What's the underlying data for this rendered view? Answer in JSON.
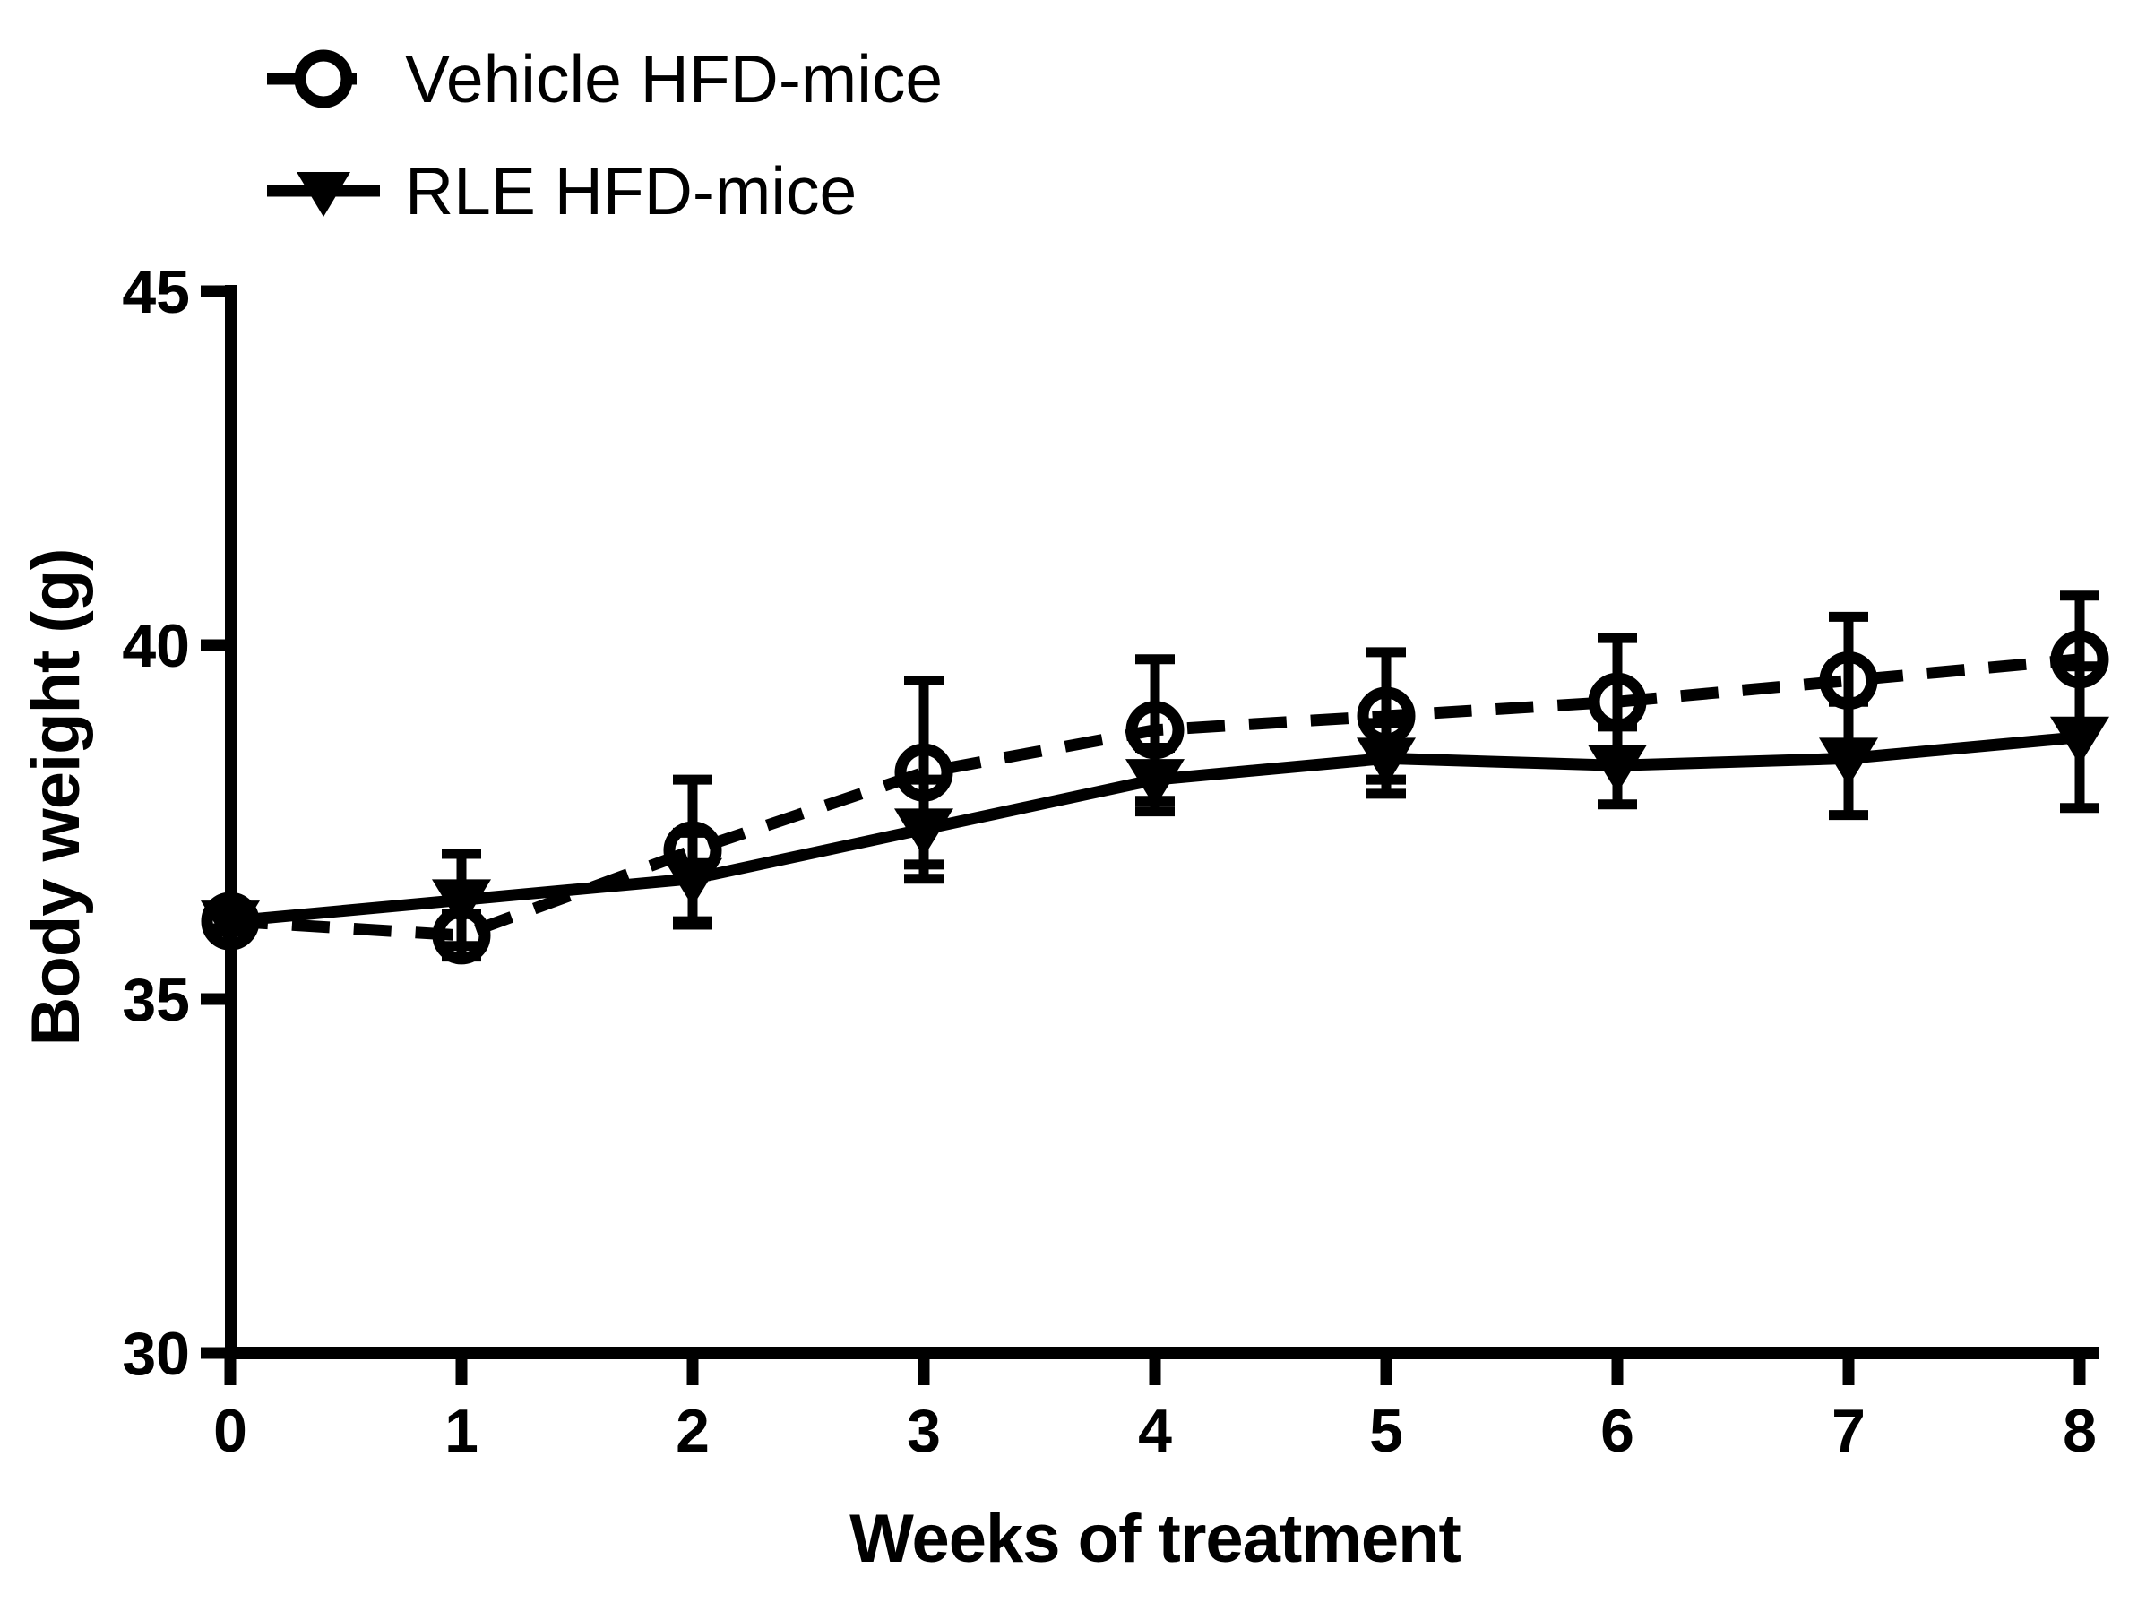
{
  "figure": {
    "background_color": "#ffffff",
    "ink_color": "#000000"
  },
  "chart_data": {
    "type": "line",
    "title": "",
    "xlabel": "Weeks of treatment",
    "ylabel": "Body weight (g)",
    "x": [
      0,
      1,
      2,
      3,
      4,
      5,
      6,
      7,
      8
    ],
    "xticks": [
      0,
      1,
      2,
      3,
      4,
      5,
      6,
      7,
      8
    ],
    "yticks": [
      30,
      35,
      40,
      45
    ],
    "xlim": [
      0,
      8
    ],
    "ylim": [
      30,
      45
    ],
    "grid": false,
    "legend_position": "top-left",
    "error_bars": "sem",
    "series": [
      {
        "name": "Vehicle HFD-mice",
        "marker": "open-circle",
        "line_style": "dashed",
        "values": [
          36.1,
          35.9,
          37.1,
          38.2,
          38.8,
          39.0,
          39.2,
          39.5,
          39.8
        ],
        "sem": [
          0.15,
          0.3,
          1.0,
          1.3,
          1.0,
          0.9,
          0.9,
          0.9,
          0.9
        ]
      },
      {
        "name": "RLE HFD-mice",
        "marker": "filled-triangle-down",
        "line_style": "solid",
        "values": [
          36.1,
          36.4,
          36.7,
          37.4,
          38.1,
          38.4,
          38.3,
          38.4,
          38.7
        ],
        "sem": [
          0.1,
          0.65,
          0.65,
          0.7,
          0.45,
          0.5,
          0.55,
          0.8,
          1.0
        ]
      }
    ]
  }
}
